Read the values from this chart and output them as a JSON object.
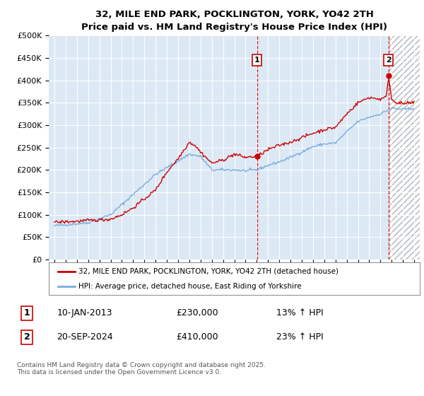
{
  "title": "32, MILE END PARK, POCKLINGTON, YORK, YO42 2TH",
  "subtitle": "Price paid vs. HM Land Registry's House Price Index (HPI)",
  "ylim": [
    0,
    500000
  ],
  "yticks": [
    0,
    50000,
    100000,
    150000,
    200000,
    250000,
    300000,
    350000,
    400000,
    450000,
    500000
  ],
  "ytick_labels": [
    "£0",
    "£50K",
    "£100K",
    "£150K",
    "£200K",
    "£250K",
    "£300K",
    "£350K",
    "£400K",
    "£450K",
    "£500K"
  ],
  "background_color": "#dce9f5",
  "line_color_property": "#cc0000",
  "line_color_hpi": "#7aaddc",
  "sale1_date": 2013.03,
  "sale1_price": 230000,
  "sale2_date": 2024.72,
  "sale2_price": 410000,
  "legend_property": "32, MILE END PARK, POCKLINGTON, YORK, YO42 2TH (detached house)",
  "legend_hpi": "HPI: Average price, detached house, East Riding of Yorkshire",
  "footnote": "Contains HM Land Registry data © Crown copyright and database right 2025.\nThis data is licensed under the Open Government Licence v3.0.",
  "xlim_start": 1994.5,
  "xlim_end": 2027.5
}
